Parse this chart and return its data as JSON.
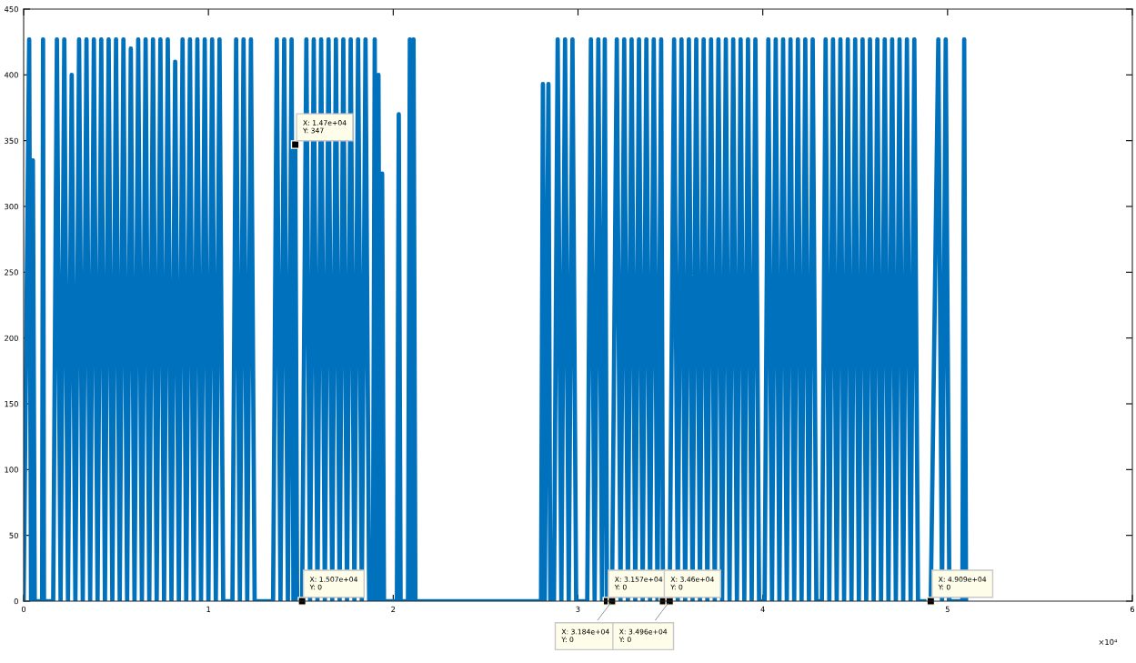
{
  "chart_data": {
    "type": "line",
    "x": [
      0,
      0.03,
      0.04,
      0.05,
      0.06,
      0.1,
      0.105,
      0.11,
      0.16,
      0.18,
      0.2,
      0.22,
      0.24,
      0.26,
      0.28,
      0.3,
      0.32,
      0.34,
      0.36,
      0.38,
      0.4,
      0.42,
      0.44,
      0.46,
      0.48,
      0.5,
      0.52,
      0.54,
      0.56,
      0.58,
      0.6,
      0.62,
      0.64,
      0.66,
      0.68,
      0.7,
      0.72,
      0.74,
      0.76,
      0.78,
      0.8,
      0.82,
      0.84,
      0.86,
      0.88,
      0.9,
      0.92,
      0.94,
      0.96,
      0.98,
      1,
      1.02,
      1.04,
      1.06,
      1.08,
      1.13,
      1.15,
      1.17,
      1.19,
      1.21,
      1.23,
      1.25,
      1.35,
      1.37,
      1.39,
      1.41,
      1.43,
      1.45,
      1.46,
      1.47,
      1.48,
      1.507,
      1.53,
      1.55,
      1.57,
      1.59,
      1.61,
      1.63,
      1.65,
      1.67,
      1.69,
      1.71,
      1.73,
      1.75,
      1.77,
      1.79,
      1.81,
      1.83,
      1.85,
      1.87,
      1.89,
      1.9,
      1.91,
      1.92,
      1.93,
      1.94,
      1.95,
      2.02,
      2.03,
      2.04,
      2.08,
      2.09,
      2.1,
      2.11,
      2.12,
      2.8,
      2.81,
      2.82,
      2.84,
      2.85,
      2.87,
      2.89,
      2.91,
      2.93,
      2.95,
      2.97,
      2.99,
      3.05,
      3.07,
      3.09,
      3.11,
      3.13,
      3.145,
      3.157,
      3.184,
      3.21,
      3.23,
      3.25,
      3.27,
      3.29,
      3.31,
      3.33,
      3.35,
      3.37,
      3.39,
      3.41,
      3.43,
      3.45,
      3.46,
      3.496,
      3.52,
      3.54,
      3.56,
      3.58,
      3.6,
      3.62,
      3.64,
      3.66,
      3.68,
      3.7,
      3.72,
      3.74,
      3.76,
      3.78,
      3.8,
      3.82,
      3.84,
      3.86,
      3.88,
      3.9,
      3.92,
      3.94,
      3.96,
      3.98,
      4.01,
      4.03,
      4.05,
      4.07,
      4.09,
      4.11,
      4.13,
      4.15,
      4.17,
      4.19,
      4.21,
      4.23,
      4.25,
      4.27,
      4.29,
      4.32,
      4.34,
      4.36,
      4.38,
      4.4,
      4.42,
      4.44,
      4.46,
      4.48,
      4.5,
      4.52,
      4.54,
      4.56,
      4.58,
      4.6,
      4.62,
      4.64,
      4.66,
      4.68,
      4.7,
      4.72,
      4.74,
      4.76,
      4.78,
      4.8,
      4.82,
      4.84,
      4.909,
      4.95,
      4.97,
      4.99,
      5.01,
      5.08,
      5.09,
      5.1
    ],
    "series": [
      {
        "color": "#0072bd",
        "values": [
          0,
          427,
          0,
          335,
          0,
          0,
          427,
          0,
          0,
          427,
          0,
          427,
          0,
          400,
          0,
          427,
          0,
          427,
          0,
          427,
          0,
          427,
          0,
          427,
          0,
          427,
          0,
          427,
          0,
          420,
          0,
          427,
          0,
          427,
          0,
          427,
          0,
          427,
          0,
          427,
          0,
          410,
          0,
          427,
          0,
          427,
          0,
          427,
          0,
          427,
          0,
          427,
          0,
          427,
          0,
          0,
          427,
          0,
          427,
          0,
          427,
          0,
          0,
          427,
          0,
          427,
          0,
          427,
          0,
          347,
          0,
          0,
          427,
          0,
          427,
          0,
          427,
          0,
          427,
          0,
          427,
          0,
          427,
          0,
          427,
          0,
          427,
          0,
          427,
          0,
          0,
          427,
          0,
          400,
          0,
          325,
          0,
          0,
          370,
          0,
          0,
          427,
          0,
          427,
          0,
          0,
          393,
          0,
          393,
          0,
          0,
          427,
          0,
          427,
          0,
          427,
          0,
          0,
          427,
          0,
          427,
          0,
          427,
          0,
          0,
          427,
          0,
          427,
          0,
          427,
          0,
          427,
          0,
          427,
          0,
          427,
          0,
          427,
          0,
          0,
          427,
          0,
          427,
          0,
          427,
          0,
          427,
          0,
          427,
          0,
          427,
          0,
          427,
          0,
          427,
          0,
          427,
          0,
          427,
          0,
          427,
          0,
          427,
          0,
          0,
          427,
          0,
          427,
          0,
          427,
          0,
          427,
          0,
          427,
          0,
          427,
          0,
          427,
          0,
          0,
          427,
          0,
          427,
          0,
          427,
          0,
          427,
          0,
          427,
          0,
          427,
          0,
          427,
          0,
          427,
          0,
          427,
          0,
          427,
          0,
          427,
          0,
          427,
          0,
          427,
          0,
          0,
          427,
          0,
          427,
          0,
          0,
          427,
          0
        ]
      }
    ],
    "xlim": [
      0,
      6
    ],
    "xticks": [
      0,
      1,
      2,
      3,
      4,
      5,
      6
    ],
    "ylim": [
      0,
      450
    ],
    "yticks": [
      0,
      50,
      100,
      150,
      200,
      250,
      300,
      350,
      400,
      450
    ],
    "grid": false,
    "line_style": "solid",
    "annotations": [
      {
        "text": "X: 1.47e+04\nY: 347",
        "x": 1.47,
        "y": 347
      },
      {
        "text": "X: 1.507e+04\nY: 0",
        "x": 1.507,
        "y": 0
      },
      {
        "text": "X: 3.157e+04\nY: 0",
        "x": 3.157,
        "y": 0
      },
      {
        "text": "X: 3.184e+04\nY: 0",
        "x": 3.184,
        "y": 0
      },
      {
        "text": "X: 3.46e+04\nY: 0",
        "x": 3.46,
        "y": 0
      },
      {
        "text": "X: 3.496e+04\nY: 0",
        "x": 3.496,
        "y": 0
      },
      {
        "text": "X: 4.909e+04\nY: 0",
        "x": 4.909,
        "y": 0
      },
      "×10⁴"
    ]
  }
}
